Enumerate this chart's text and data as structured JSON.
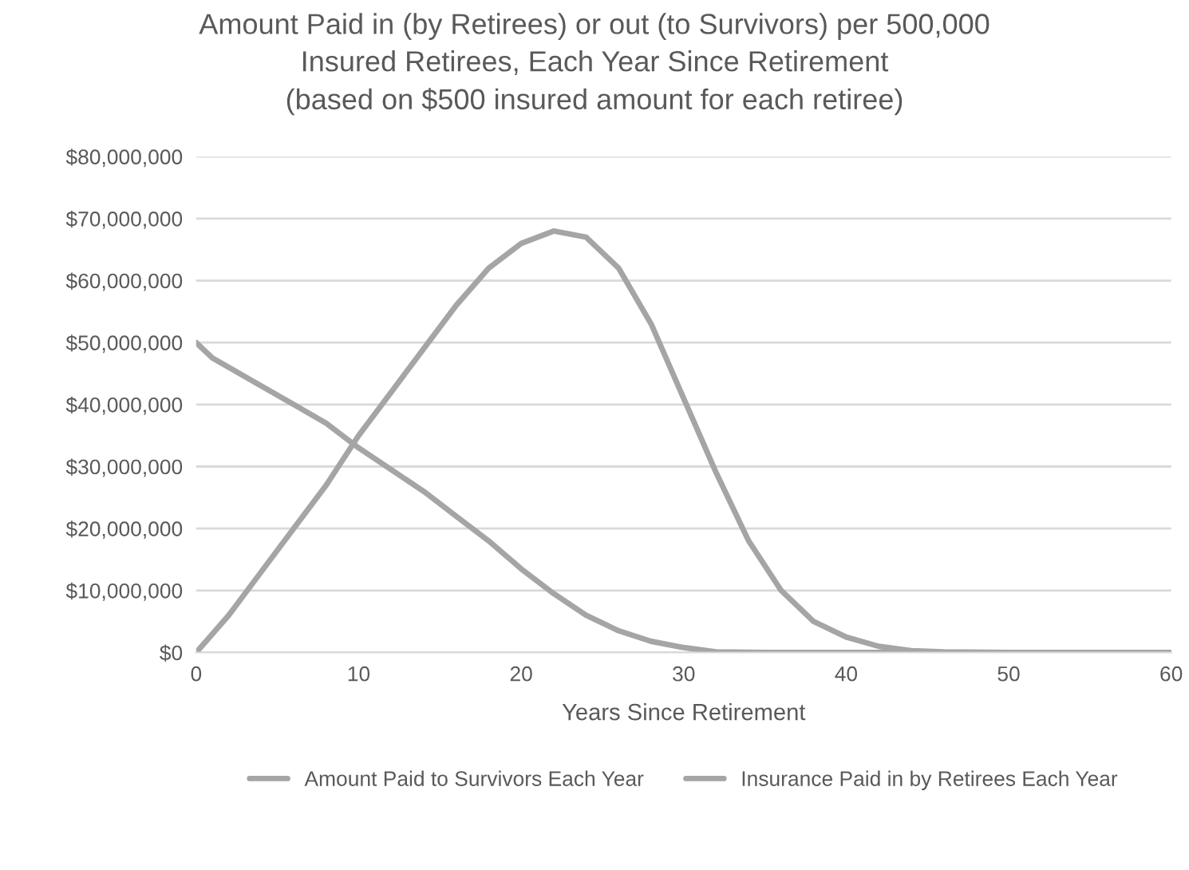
{
  "chart_data": {
    "type": "line",
    "title": "Amount Paid in (by Retirees) or out (to Survivors) per 500,000\nInsured Retirees, Each Year Since Retirement\n(based on $500 insured amount for each retiree)",
    "xlabel": "Years Since Retirement",
    "series": [
      {
        "name": "Amount Paid to Survivors Each Year",
        "color": "#a5a5a5",
        "x": [
          0,
          2,
          4,
          6,
          8,
          10,
          12,
          14,
          16,
          18,
          20,
          22,
          24,
          26,
          28,
          30,
          32,
          34,
          36,
          38,
          40,
          42,
          44,
          46,
          50,
          55,
          60
        ],
        "values": [
          0,
          6000000,
          13000000,
          20000000,
          27000000,
          35000000,
          42000000,
          49000000,
          56000000,
          62000000,
          66000000,
          68000000,
          67000000,
          62000000,
          53000000,
          41000000,
          29000000,
          18000000,
          10000000,
          5000000,
          2500000,
          1000000,
          300000,
          100000,
          0,
          0,
          0
        ]
      },
      {
        "name": "Insurance Paid in by Retirees Each Year",
        "color": "#a5a5a5",
        "x": [
          0,
          1,
          4,
          6,
          8,
          10,
          12,
          14,
          16,
          18,
          20,
          22,
          24,
          26,
          28,
          30,
          32,
          35,
          40,
          50,
          60
        ],
        "values": [
          50000000,
          47500000,
          43000000,
          40000000,
          37000000,
          33000000,
          29500000,
          26000000,
          22000000,
          18000000,
          13500000,
          9500000,
          6000000,
          3500000,
          1800000,
          800000,
          100000,
          0,
          0,
          0,
          0
        ]
      }
    ],
    "xlim": [
      0,
      60
    ],
    "xticks": [
      0,
      10,
      20,
      30,
      40,
      50,
      60
    ],
    "ylim": [
      0,
      80000000
    ],
    "yticks": [
      {
        "value": 0,
        "label": "$0"
      },
      {
        "value": 10000000,
        "label": "$10,000,000"
      },
      {
        "value": 20000000,
        "label": "$20,000,000"
      },
      {
        "value": 30000000,
        "label": "$30,000,000"
      },
      {
        "value": 40000000,
        "label": "$40,000,000"
      },
      {
        "value": 50000000,
        "label": "$50,000,000"
      },
      {
        "value": 60000000,
        "label": "$60,000,000"
      },
      {
        "value": 70000000,
        "label": "$70,000,000"
      },
      {
        "value": 80000000,
        "label": "$80,000,000"
      }
    ],
    "grid": "y",
    "legend": "bottom",
    "marker": "none",
    "line_style": "solid"
  }
}
